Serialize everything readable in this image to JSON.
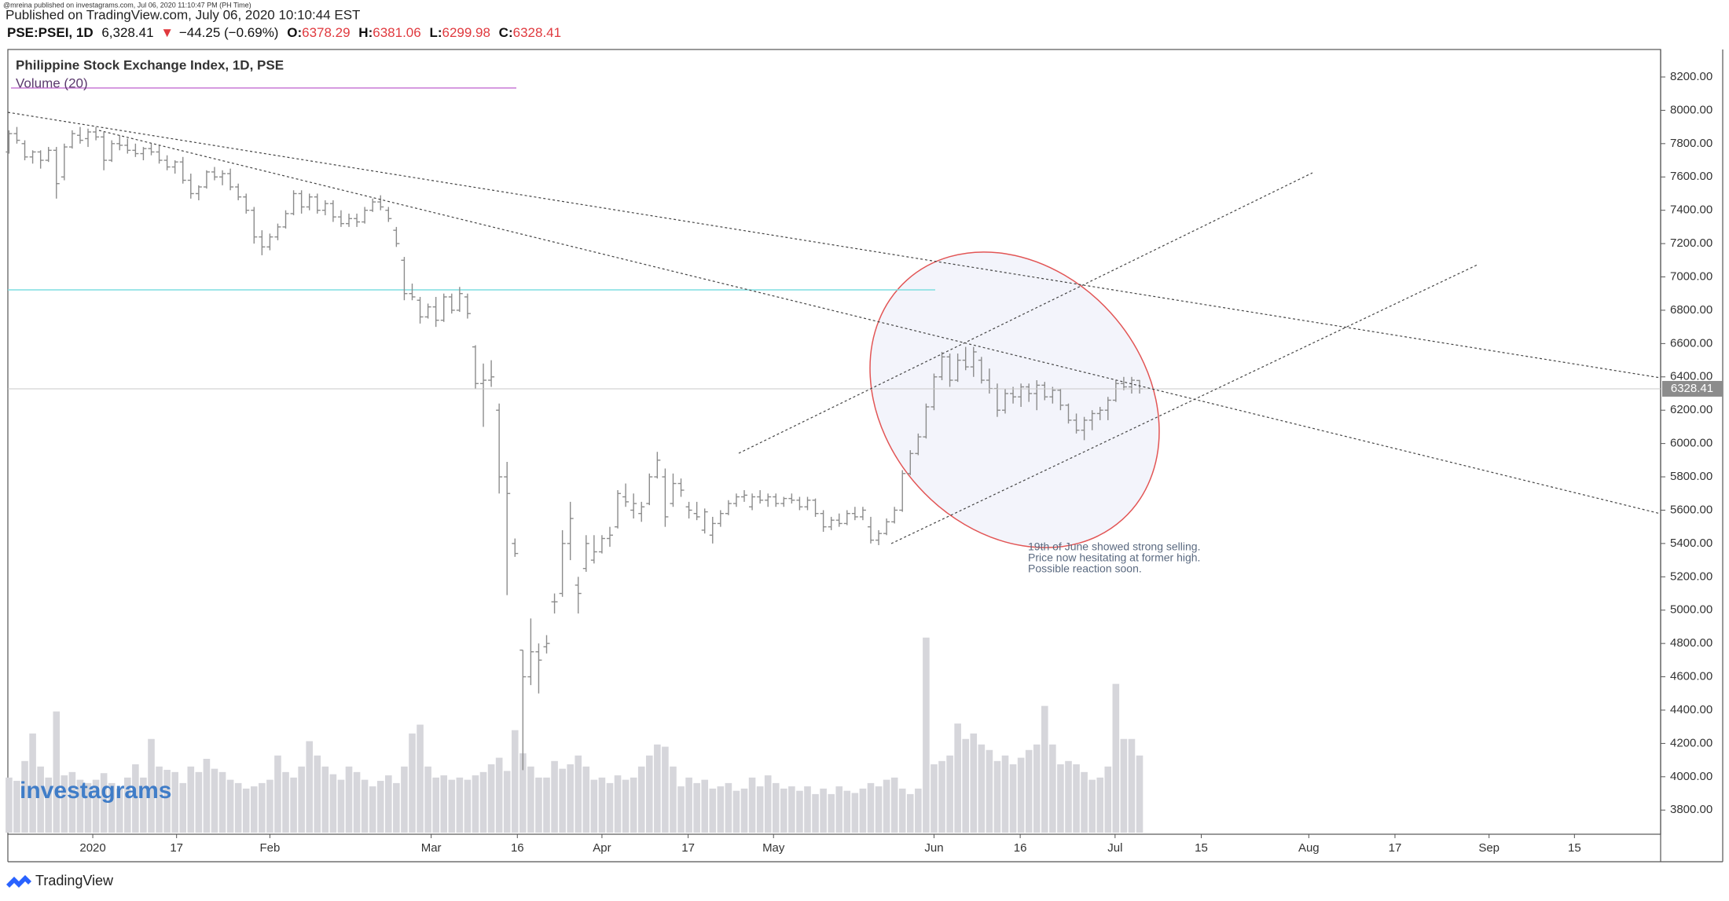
{
  "header": {
    "published_small": "@mreina published on investagrams.com, Jul 06, 2020 11:10:47 PM (PH Time)",
    "published": "Published on TradingView.com, July 06, 2020 10:10:44 EST",
    "symbol": "PSE:PSEI, 1D",
    "price": "6,328.41",
    "change_arrow": "▼",
    "change": "−44.25 (−0.69%)",
    "o_label": "O:",
    "o": 6378.29,
    "h_label": "H:",
    "h": 6381.06,
    "l_label": "L:",
    "l": 6299.98,
    "c_label": "C:",
    "c": 6328.41
  },
  "chart_data": {
    "type": "ohlc",
    "title": "Philippine Stock Exchange Index, 1D, PSE",
    "volume_title": "Volume (20)",
    "color": "#8c8c8c",
    "volume_color": "#d6d6db",
    "annotation": [
      "19th of June showed strong selling.",
      "Price now hesitating at former high.",
      "Possible reaction soon."
    ],
    "watermark": "investagrams",
    "footer": "TradingView",
    "ylim": [
      3655,
      8365
    ],
    "yticks": [
      {
        "value": 8200,
        "label": "8200.00"
      },
      {
        "value": 8000,
        "label": "8000.00"
      },
      {
        "value": 7800,
        "label": "7800.00"
      },
      {
        "value": 7600,
        "label": "7600.00"
      },
      {
        "value": 7400,
        "label": "7400.00"
      },
      {
        "value": 7200,
        "label": "7200.00"
      },
      {
        "value": 7000,
        "label": "7000.00"
      },
      {
        "value": 6800,
        "label": "6800.00"
      },
      {
        "value": 6600,
        "label": "6600.00"
      },
      {
        "value": 6400,
        "label": "6400.00"
      },
      {
        "value": 6200,
        "label": "6200.00"
      },
      {
        "value": 6000,
        "label": "6000.00"
      },
      {
        "value": 5800,
        "label": "5800.00"
      },
      {
        "value": 5600,
        "label": "5600.00"
      },
      {
        "value": 5400,
        "label": "5400.00"
      },
      {
        "value": 5200,
        "label": "5200.00"
      },
      {
        "value": 5000,
        "label": "5000.00"
      },
      {
        "value": 4800,
        "label": "4800.00"
      },
      {
        "value": 4600,
        "label": "4600.00"
      },
      {
        "value": 4400,
        "label": "4400.00"
      },
      {
        "value": 4200,
        "label": "4200.00"
      },
      {
        "value": 4000,
        "label": "4000.00"
      },
      {
        "value": 3800,
        "label": "3800.00"
      }
    ],
    "xlim": [
      -0.14,
      208.9
    ],
    "xticks": [
      {
        "value": 10.6,
        "label": "2020"
      },
      {
        "value": 21.2,
        "label": "17"
      },
      {
        "value": 33,
        "label": "Feb"
      },
      {
        "value": 53.4,
        "label": "Mar"
      },
      {
        "value": 64.3,
        "label": "16"
      },
      {
        "value": 75,
        "label": "Apr"
      },
      {
        "value": 85.9,
        "label": "17"
      },
      {
        "value": 96.7,
        "label": "May"
      },
      {
        "value": 117,
        "label": "Jun"
      },
      {
        "value": 127.9,
        "label": "16"
      },
      {
        "value": 139.9,
        "label": "Jul"
      },
      {
        "value": 150.8,
        "label": "15"
      },
      {
        "value": 164.4,
        "label": "Aug"
      },
      {
        "value": 175.3,
        "label": "17"
      },
      {
        "value": 187.2,
        "label": "Sep"
      },
      {
        "value": 198,
        "label": "15"
      }
    ],
    "ohlc": [
      [
        7750,
        7880,
        7740,
        7860
      ],
      [
        7860,
        7900,
        7800,
        7820
      ],
      [
        7800,
        7820,
        7700,
        7720
      ],
      [
        7720,
        7760,
        7680,
        7750
      ],
      [
        7750,
        7760,
        7650,
        7700
      ],
      [
        7700,
        7780,
        7690,
        7760
      ],
      [
        7760,
        7780,
        7470,
        7560
      ],
      [
        7600,
        7800,
        7580,
        7780
      ],
      [
        7780,
        7880,
        7770,
        7860
      ],
      [
        7850,
        7900,
        7800,
        7820
      ],
      [
        7830,
        7890,
        7780,
        7870
      ],
      [
        7870,
        7900,
        7820,
        7840
      ],
      [
        7840,
        7870,
        7640,
        7700
      ],
      [
        7700,
        7820,
        7690,
        7800
      ],
      [
        7800,
        7850,
        7760,
        7790
      ],
      [
        7790,
        7830,
        7740,
        7760
      ],
      [
        7760,
        7800,
        7720,
        7740
      ],
      [
        7740,
        7780,
        7700,
        7770
      ],
      [
        7770,
        7800,
        7730,
        7750
      ],
      [
        7750,
        7790,
        7680,
        7700
      ],
      [
        7700,
        7730,
        7640,
        7660
      ],
      [
        7660,
        7700,
        7620,
        7690
      ],
      [
        7690,
        7720,
        7560,
        7580
      ],
      [
        7580,
        7620,
        7470,
        7500
      ],
      [
        7500,
        7550,
        7460,
        7540
      ],
      [
        7540,
        7640,
        7530,
        7630
      ],
      [
        7630,
        7660,
        7580,
        7600
      ],
      [
        7600,
        7640,
        7550,
        7620
      ],
      [
        7620,
        7650,
        7520,
        7540
      ],
      [
        7540,
        7560,
        7460,
        7480
      ],
      [
        7480,
        7500,
        7380,
        7400
      ],
      [
        7400,
        7420,
        7200,
        7240
      ],
      [
        7240,
        7280,
        7130,
        7180
      ],
      [
        7180,
        7260,
        7160,
        7240
      ],
      [
        7240,
        7320,
        7220,
        7300
      ],
      [
        7300,
        7400,
        7290,
        7380
      ],
      [
        7380,
        7520,
        7370,
        7500
      ],
      [
        7500,
        7520,
        7380,
        7420
      ],
      [
        7420,
        7500,
        7400,
        7480
      ],
      [
        7480,
        7500,
        7380,
        7400
      ],
      [
        7400,
        7460,
        7370,
        7440
      ],
      [
        7440,
        7460,
        7330,
        7360
      ],
      [
        7360,
        7400,
        7300,
        7320
      ],
      [
        7320,
        7380,
        7300,
        7350
      ],
      [
        7350,
        7380,
        7300,
        7330
      ],
      [
        7330,
        7420,
        7320,
        7400
      ],
      [
        7400,
        7470,
        7390,
        7450
      ],
      [
        7450,
        7490,
        7400,
        7420
      ],
      [
        7400,
        7420,
        7330,
        7350
      ],
      [
        7280,
        7300,
        7180,
        7200
      ],
      [
        7100,
        7120,
        6860,
        6900
      ],
      [
        6900,
        6960,
        6860,
        6880
      ],
      [
        6860,
        6880,
        6720,
        6760
      ],
      [
        6760,
        6840,
        6750,
        6820
      ],
      [
        6820,
        6880,
        6700,
        6740
      ],
      [
        6740,
        6900,
        6730,
        6880
      ],
      [
        6880,
        6900,
        6780,
        6800
      ],
      [
        6800,
        6940,
        6790,
        6900
      ],
      [
        6880,
        6900,
        6750,
        6780
      ],
      [
        6580,
        6590,
        6330,
        6360
      ],
      [
        6360,
        6480,
        6100,
        6380
      ],
      [
        6380,
        6500,
        6340,
        6400
      ],
      [
        6200,
        6240,
        5700,
        5800
      ],
      [
        5800,
        5890,
        5090,
        5700
      ],
      [
        5400,
        5430,
        5320,
        5340
      ],
      [
        4760,
        4760,
        4040,
        4600
      ],
      [
        4600,
        4950,
        4550,
        4750
      ],
      [
        4750,
        4800,
        4500,
        4700
      ],
      [
        4780,
        4850,
        4740,
        4800
      ],
      [
        5050,
        5100,
        4980,
        5050
      ],
      [
        5100,
        5480,
        5080,
        5400
      ],
      [
        5400,
        5650,
        5300,
        5550
      ],
      [
        5150,
        5200,
        4980,
        5100
      ],
      [
        5250,
        5450,
        5230,
        5400
      ],
      [
        5300,
        5450,
        5280,
        5350
      ],
      [
        5350,
        5450,
        5340,
        5430
      ],
      [
        5430,
        5500,
        5380,
        5450
      ],
      [
        5500,
        5720,
        5490,
        5700
      ],
      [
        5680,
        5760,
        5620,
        5650
      ],
      [
        5600,
        5700,
        5550,
        5640
      ],
      [
        5580,
        5650,
        5530,
        5620
      ],
      [
        5640,
        5820,
        5630,
        5800
      ],
      [
        5800,
        5950,
        5790,
        5900
      ],
      [
        5800,
        5850,
        5500,
        5560
      ],
      [
        5640,
        5820,
        5620,
        5760
      ],
      [
        5760,
        5790,
        5680,
        5720
      ],
      [
        5620,
        5650,
        5550,
        5600
      ],
      [
        5580,
        5650,
        5540,
        5560
      ],
      [
        5480,
        5610,
        5460,
        5590
      ],
      [
        5450,
        5560,
        5400,
        5520
      ],
      [
        5520,
        5600,
        5500,
        5580
      ],
      [
        5580,
        5660,
        5570,
        5640
      ],
      [
        5640,
        5700,
        5620,
        5680
      ],
      [
        5680,
        5720,
        5650,
        5690
      ],
      [
        5620,
        5700,
        5600,
        5680
      ],
      [
        5680,
        5720,
        5640,
        5660
      ],
      [
        5660,
        5700,
        5620,
        5680
      ],
      [
        5680,
        5700,
        5620,
        5640
      ],
      [
        5640,
        5680,
        5620,
        5670
      ],
      [
        5670,
        5700,
        5640,
        5660
      ],
      [
        5660,
        5680,
        5600,
        5620
      ],
      [
        5620,
        5680,
        5600,
        5660
      ],
      [
        5660,
        5670,
        5560,
        5580
      ],
      [
        5580,
        5600,
        5470,
        5500
      ],
      [
        5500,
        5560,
        5480,
        5540
      ],
      [
        5540,
        5580,
        5500,
        5520
      ],
      [
        5520,
        5600,
        5510,
        5580
      ],
      [
        5580,
        5620,
        5540,
        5560
      ],
      [
        5560,
        5620,
        5540,
        5600
      ],
      [
        5500,
        5560,
        5400,
        5420
      ],
      [
        5420,
        5480,
        5390,
        5460
      ],
      [
        5460,
        5550,
        5450,
        5530
      ],
      [
        5530,
        5620,
        5520,
        5600
      ],
      [
        5600,
        5840,
        5590,
        5820
      ],
      [
        5820,
        5960,
        5810,
        5940
      ],
      [
        5940,
        6060,
        5930,
        6040
      ],
      [
        6040,
        6240,
        6030,
        6220
      ],
      [
        6220,
        6420,
        6200,
        6400
      ],
      [
        6400,
        6550,
        6380,
        6520
      ],
      [
        6520,
        6540,
        6340,
        6380
      ],
      [
        6380,
        6540,
        6370,
        6500
      ],
      [
        6500,
        6580,
        6440,
        6460
      ],
      [
        6460,
        6580,
        6400,
        6550
      ],
      [
        6500,
        6520,
        6360,
        6380
      ],
      [
        6380,
        6450,
        6300,
        6330
      ],
      [
        6330,
        6360,
        6160,
        6200
      ],
      [
        6200,
        6330,
        6180,
        6300
      ],
      [
        6300,
        6340,
        6240,
        6280
      ],
      [
        6280,
        6360,
        6220,
        6340
      ],
      [
        6340,
        6360,
        6250,
        6300
      ],
      [
        6300,
        6380,
        6200,
        6350
      ],
      [
        6350,
        6370,
        6260,
        6280
      ],
      [
        6280,
        6340,
        6240,
        6320
      ],
      [
        6320,
        6330,
        6200,
        6230
      ],
      [
        6230,
        6240,
        6120,
        6140
      ],
      [
        6140,
        6180,
        6060,
        6080
      ],
      [
        6080,
        6160,
        6020,
        6140
      ],
      [
        6140,
        6200,
        6080,
        6180
      ],
      [
        6180,
        6220,
        6140,
        6200
      ],
      [
        6200,
        6280,
        6140,
        6260
      ],
      [
        6260,
        6380,
        6250,
        6360
      ],
      [
        6360,
        6400,
        6320,
        6340
      ],
      [
        6340,
        6400,
        6300,
        6380
      ],
      [
        6378.29,
        6381.06,
        6299.98,
        6328.41
      ]
    ],
    "volume": [
      50,
      47,
      65,
      90,
      60,
      50,
      110,
      52,
      55,
      48,
      45,
      48,
      54,
      45,
      40,
      50,
      62,
      50,
      85,
      60,
      57,
      55,
      45,
      60,
      55,
      67,
      58,
      55,
      48,
      45,
      40,
      42,
      45,
      48,
      70,
      55,
      50,
      60,
      83,
      70,
      60,
      53,
      48,
      60,
      55,
      48,
      42,
      47,
      52,
      45,
      60,
      90,
      98,
      60,
      50,
      52,
      48,
      50,
      48,
      52,
      55,
      62,
      68,
      56,
      93,
      72,
      60,
      50,
      50,
      65,
      58,
      62,
      70,
      60,
      48,
      50,
      45,
      52,
      48,
      50,
      60,
      70,
      80,
      78,
      60,
      42,
      50,
      45,
      48,
      40,
      42,
      45,
      38,
      40,
      50,
      42,
      52,
      45,
      40,
      42,
      38,
      42,
      35,
      40,
      35,
      42,
      38,
      36,
      40,
      45,
      42,
      48,
      50,
      40,
      35,
      40,
      177,
      62,
      65,
      70,
      99,
      85,
      90,
      80,
      75,
      65,
      70,
      62,
      68,
      75,
      80,
      115,
      80,
      62,
      65,
      62,
      55,
      48,
      50,
      60,
      135,
      85,
      85,
      70
    ]
  }
}
